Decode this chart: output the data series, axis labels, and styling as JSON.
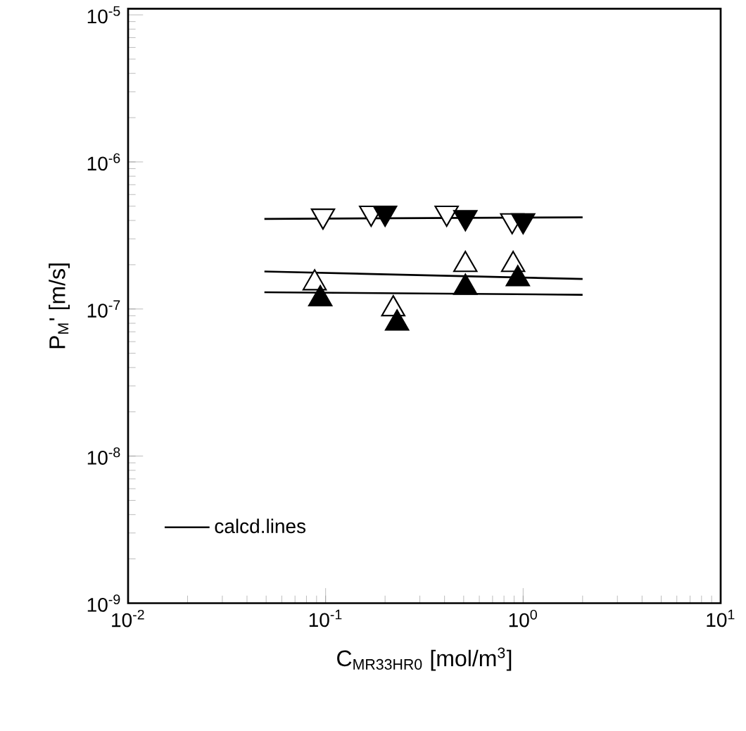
{
  "chart_data": {
    "type": "scatter",
    "xlabel": "C$_{MR33HR0}$ [mol/m$^{3}$]",
    "ylabel": "P$_{M}$' [m/s]",
    "log": "xy",
    "xlim": [
      0.01,
      10
    ],
    "ylim": [
      1e-09,
      1.1e-05
    ],
    "xticks": [
      {
        "value": 0.01,
        "label": "10$^{-2}$"
      },
      {
        "value": 0.1,
        "label": "10$^{-1}$"
      },
      {
        "value": 1,
        "label": "10$^{0}$"
      },
      {
        "value": 10,
        "label": "10$^{1}$"
      }
    ],
    "yticks": [
      {
        "value": 1e-09,
        "label": "10$^{-9}$"
      },
      {
        "value": 1e-08,
        "label": "10$^{-8}$"
      },
      {
        "value": 1e-07,
        "label": "10$^{-7}$"
      },
      {
        "value": 1e-06,
        "label": "10$^{-6}$"
      },
      {
        "value": 1e-05,
        "label": "10$^{-5}$"
      }
    ],
    "grid": false,
    "legend": "bottom left",
    "series": [
      {
        "marker": "triangle-down",
        "color": "#ffffff",
        "x": [
          0.097,
          0.17,
          0.41,
          0.88
        ],
        "values": [
          4.3e-07,
          4.5e-07,
          4.5e-07,
          4e-07
        ]
      },
      {
        "marker": "triangle-down",
        "color": "#000000",
        "x": [
          0.2,
          0.51,
          1.0
        ],
        "values": [
          4.5e-07,
          4.2e-07,
          4e-07
        ]
      },
      {
        "marker": "triangle",
        "color": "#ffffff",
        "x": [
          0.088,
          0.22,
          0.51,
          0.89
        ],
        "values": [
          1.5e-07,
          1e-07,
          2e-07,
          2e-07
        ]
      },
      {
        "marker": "triangle",
        "color": "#000000",
        "x": [
          0.094,
          0.23,
          0.51,
          0.94
        ],
        "values": [
          1.17e-07,
          8e-08,
          1.4e-07,
          1.6e-07
        ]
      },
      {
        "type": "line",
        "name": "calcd.lines",
        "color": "#000000",
        "x": [
          0.049,
          2.0
        ],
        "values": [
          4.1e-07,
          4.2e-07
        ]
      },
      {
        "type": "line",
        "color": "#000000",
        "x": [
          0.049,
          2.0
        ],
        "values": [
          1.8e-07,
          1.6e-07
        ]
      },
      {
        "type": "line",
        "color": "#000000",
        "x": [
          0.049,
          2.0
        ],
        "values": [
          1.3e-07,
          1.25e-07
        ]
      }
    ]
  }
}
